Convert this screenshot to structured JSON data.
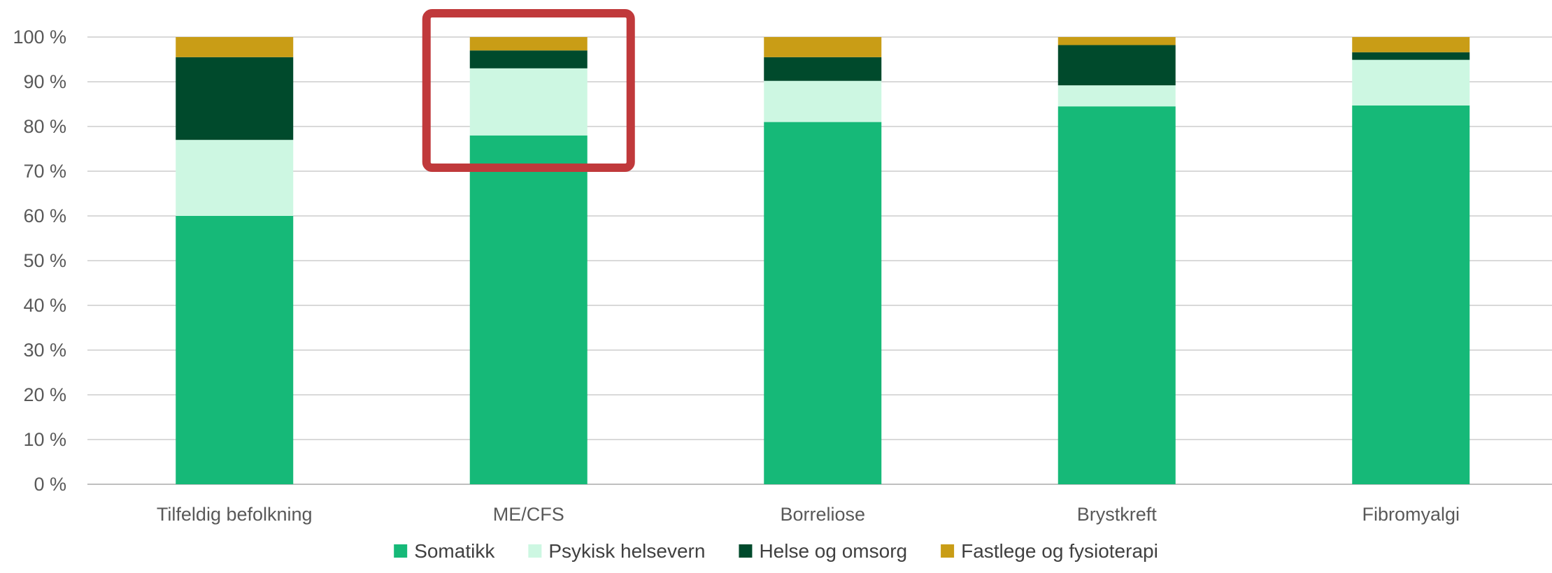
{
  "chart_data": {
    "type": "bar",
    "stacked": true,
    "title": "",
    "xlabel": "",
    "ylabel": "",
    "ylim": [
      0,
      100
    ],
    "ytick_step": 10,
    "ytick_suffix": " %",
    "grid": true,
    "legend_position": "bottom",
    "categories": [
      "Tilfeldig befolkning",
      "ME/CFS",
      "Borreliose",
      "Brystkreft",
      "Fibromyalgi"
    ],
    "series": [
      {
        "name": "Somatikk",
        "color": "#16b978",
        "values": [
          60,
          78,
          81,
          84.5,
          84.7
        ]
      },
      {
        "name": "Psykisk helsevern",
        "color": "#cdf7e2",
        "values": [
          17,
          15,
          9.2,
          4.7,
          10.2
        ]
      },
      {
        "name": "Helse og omsorg",
        "color": "#004a2c",
        "values": [
          18.5,
          4,
          5.3,
          9,
          1.7
        ]
      },
      {
        "name": "Fastlege og fysioterapi",
        "color": "#c99d16",
        "values": [
          4.5,
          3,
          4.5,
          1.8,
          3.4
        ]
      }
    ],
    "highlight": {
      "category": "ME/CFS",
      "from": 70,
      "to": 100,
      "color": "#c0393b"
    }
  }
}
